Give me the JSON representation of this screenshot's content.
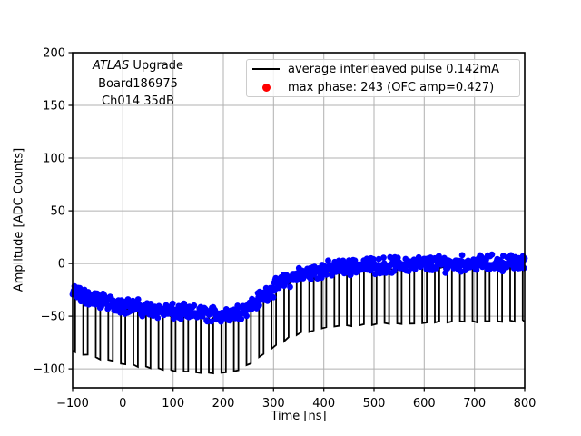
{
  "chart_data": {
    "type": "line+scatter",
    "title": "",
    "xlabel": "Time [ns]",
    "ylabel": "Amplitude [ADC Counts]",
    "xlim": [
      -100,
      800
    ],
    "ylim": [
      -118,
      200
    ],
    "x_ticks": [
      -100,
      0,
      100,
      200,
      300,
      400,
      500,
      600,
      700,
      800
    ],
    "x_tick_labels": [
      "−100",
      "0",
      "100",
      "200",
      "300",
      "400",
      "500",
      "600",
      "700",
      "800"
    ],
    "y_ticks": [
      200,
      150,
      100,
      50,
      0,
      -50,
      -100
    ],
    "y_tick_labels": [
      "200",
      "150",
      "100",
      "50",
      "0",
      "−50",
      "−100"
    ],
    "grid": true,
    "legend_position": "upper right",
    "annotation": {
      "line1_italic": "ATLAS",
      "line1_rest": " Upgrade",
      "line2": "Board186975",
      "line3": "Ch014 35dB"
    },
    "legend": {
      "entries": [
        {
          "label": "average interleaved pulse 0.142mA",
          "marker": "line",
          "color": "#000000"
        },
        {
          "label": "max phase: 243 (OFC amp=0.427)",
          "marker": "dot",
          "color": "#ff0000"
        }
      ]
    },
    "series": [
      {
        "name": "average interleaved pulse 0.142mA",
        "type": "comb_line",
        "color": "#000000",
        "envelope": [
          [
            -100,
            -31
          ],
          [
            -50,
            -38
          ],
          [
            0,
            -43
          ],
          [
            50,
            -47
          ],
          [
            100,
            -49.5
          ],
          [
            150,
            -51
          ],
          [
            190,
            -52
          ],
          [
            215,
            -51.5
          ],
          [
            235,
            -48
          ],
          [
            255,
            -43
          ],
          [
            275,
            -36
          ],
          [
            295,
            -28.5
          ],
          [
            315,
            -22.5
          ],
          [
            335,
            -17.5
          ],
          [
            355,
            -14
          ],
          [
            375,
            -11.5
          ],
          [
            400,
            -9.5
          ],
          [
            430,
            -7.5
          ],
          [
            460,
            -6.5
          ],
          [
            500,
            -5.5
          ],
          [
            550,
            -4.5
          ],
          [
            600,
            -4
          ],
          [
            650,
            -3.5
          ],
          [
            700,
            -3
          ],
          [
            750,
            -3
          ],
          [
            800,
            -2.5
          ]
        ],
        "dip": {
          "period_ns": 25,
          "phase_offset_ns": -4,
          "width_ns": 9,
          "depth_counts": 52
        }
      },
      {
        "name": "max phase: 243 (OFC amp=0.427)",
        "type": "scatter",
        "color": "#0000ff",
        "offset_counts": 3.5,
        "spread_counts": 9,
        "n_points": 760,
        "marker_radius_px": 3.4
      }
    ],
    "colors": {
      "grid": "#b0b0b0",
      "frame": "#000000",
      "legend_border": "#cccccc",
      "scatter": "#0000ff",
      "line": "#000000",
      "legend_dot": "#ff0000"
    }
  }
}
